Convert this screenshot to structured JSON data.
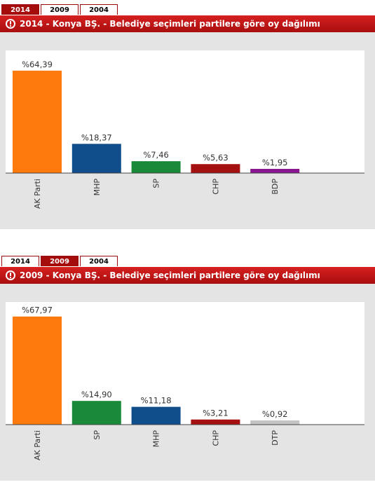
{
  "chart_data": [
    {
      "type": "bar",
      "tabs": [
        "2014",
        "2009",
        "2004"
      ],
      "active_tab": "2014",
      "title": "2014 - Konya BŞ. - Belediye seçimleri partilere göre oy dağılımı",
      "categories": [
        "AK Parti",
        "MHP",
        "SP",
        "CHP",
        "BDP"
      ],
      "value_labels": [
        "%64,39",
        "%18,37",
        "%7,46",
        "%5,63",
        "%1,95"
      ],
      "values": [
        64.39,
        18.37,
        7.46,
        5.63,
        1.95
      ],
      "colors": [
        "#ff7a0c",
        "#0f4e8a",
        "#1a8a3a",
        "#a51010",
        "#8a1590"
      ],
      "ylim": [
        0,
        70
      ],
      "grid": false,
      "legend": "none"
    },
    {
      "type": "bar",
      "tabs": [
        "2014",
        "2009",
        "2004"
      ],
      "active_tab": "2009",
      "title": "2009 - Konya BŞ. - Belediye seçimleri partilere göre oy dağılımı",
      "categories": [
        "AK Parti",
        "SP",
        "MHP",
        "CHP",
        "DTP"
      ],
      "value_labels": [
        "%67,97",
        "%14,90",
        "%11,18",
        "%3,21",
        "%0,92"
      ],
      "values": [
        67.97,
        14.9,
        11.18,
        3.21,
        0.92
      ],
      "colors": [
        "#ff7a0c",
        "#1a8a3a",
        "#0f4e8a",
        "#a51010",
        "#c4c4c4"
      ],
      "ylim": [
        0,
        70
      ],
      "grid": false,
      "legend": "none"
    }
  ]
}
